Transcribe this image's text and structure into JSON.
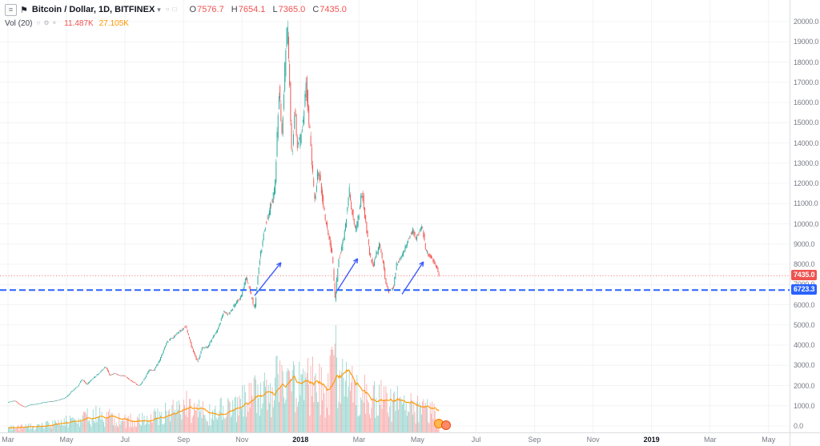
{
  "legend": {
    "symbol_title": "Bitcoin / Dollar, 1D, BITFINEX",
    "ohlc": {
      "o_label": "O",
      "o": "7576.7",
      "h_label": "H",
      "h": "7654.1",
      "l_label": "L",
      "l": "7365.0",
      "c_label": "C",
      "c": "7435.0"
    },
    "indicator": {
      "name": "Vol (20)",
      "value1": "11.487K",
      "value2": "27.105K"
    }
  },
  "colors": {
    "up": "#26a69a",
    "down": "#ef5350",
    "vol_up": "rgba(38,166,154,0.45)",
    "vol_down": "rgba(239,83,80,0.45)",
    "vol_ma": "#ff9800",
    "drawn_line": "#2962ff",
    "arrow": "#3d5afe",
    "current_price_line": "#ef5350",
    "grid_v": "rgba(42,46,57,0.06)",
    "grid_h": "rgba(42,46,57,0.05)"
  },
  "price_axis": {
    "ticks": [
      20000,
      19000,
      18000,
      17000,
      16000,
      15000,
      14000,
      13000,
      12000,
      11000,
      10000,
      9000,
      8000,
      7000,
      6000,
      5000,
      4000,
      3000,
      2000,
      1000,
      0
    ],
    "current_price_tag": "7435.0",
    "line_price_tag": "6723.3"
  },
  "time_axis": {
    "labels": [
      {
        "text": "Mar",
        "mo": 0,
        "year": false
      },
      {
        "text": "May",
        "mo": 2,
        "year": false
      },
      {
        "text": "Jul",
        "mo": 4,
        "year": false
      },
      {
        "text": "Sep",
        "mo": 6,
        "year": false
      },
      {
        "text": "Nov",
        "mo": 8,
        "year": false
      },
      {
        "text": "2018",
        "mo": 10,
        "year": true
      },
      {
        "text": "Mar",
        "mo": 12,
        "year": false
      },
      {
        "text": "May",
        "mo": 14,
        "year": false
      },
      {
        "text": "Jul",
        "mo": 16,
        "year": false
      },
      {
        "text": "Sep",
        "mo": 18,
        "year": false
      },
      {
        "text": "Nov",
        "mo": 20,
        "year": false
      },
      {
        "text": "2019",
        "mo": 22,
        "year": true
      },
      {
        "text": "Mar",
        "mo": 24,
        "year": false
      },
      {
        "text": "May",
        "mo": 26,
        "year": false
      }
    ]
  },
  "chart_data": {
    "type": "candlestick+volume",
    "title": "Bitcoin / Dollar, 1D, BITFINEX",
    "visible_data_range": "Mar 2017 - May 2018 (axis extends to May 2019)",
    "ylim": [
      0,
      20000
    ],
    "y_tick_step": 1000,
    "current_price": 7435.0,
    "support_line_price": 6723.3,
    "last_candle": {
      "o": 7576.7,
      "h": 7654.1,
      "l": 7365.0,
      "c": 7435.0
    },
    "price_keypoints": [
      [
        0.0,
        1180
      ],
      [
        0.25,
        1250
      ],
      [
        0.45,
        1020
      ],
      [
        0.6,
        940
      ],
      [
        0.8,
        1060
      ],
      [
        1.0,
        1090
      ],
      [
        1.3,
        1190
      ],
      [
        1.6,
        1230
      ],
      [
        1.8,
        1310
      ],
      [
        2.0,
        1420
      ],
      [
        2.2,
        1720
      ],
      [
        2.4,
        1960
      ],
      [
        2.55,
        2320
      ],
      [
        2.7,
        2060
      ],
      [
        2.85,
        2260
      ],
      [
        3.0,
        2460
      ],
      [
        3.2,
        2710
      ],
      [
        3.35,
        2940
      ],
      [
        3.5,
        2490
      ],
      [
        3.65,
        2610
      ],
      [
        3.8,
        2510
      ],
      [
        4.0,
        2480
      ],
      [
        4.2,
        2260
      ],
      [
        4.5,
        1980
      ],
      [
        4.65,
        2260
      ],
      [
        4.85,
        2790
      ],
      [
        5.0,
        2740
      ],
      [
        5.2,
        3260
      ],
      [
        5.45,
        4160
      ],
      [
        5.65,
        4360
      ],
      [
        5.85,
        4660
      ],
      [
        6.0,
        4810
      ],
      [
        6.1,
        4930
      ],
      [
        6.3,
        3860
      ],
      [
        6.5,
        3160
      ],
      [
        6.65,
        3860
      ],
      [
        6.85,
        3910
      ],
      [
        7.0,
        4350
      ],
      [
        7.2,
        4810
      ],
      [
        7.4,
        5710
      ],
      [
        7.55,
        5510
      ],
      [
        7.75,
        5960
      ],
      [
        8.0,
        6460
      ],
      [
        8.15,
        7410
      ],
      [
        8.3,
        6610
      ],
      [
        8.45,
        5760
      ],
      [
        8.6,
        8060
      ],
      [
        8.8,
        9860
      ],
      [
        9.0,
        10860
      ],
      [
        9.15,
        11920
      ],
      [
        9.28,
        16760
      ],
      [
        9.38,
        14310
      ],
      [
        9.48,
        17610
      ],
      [
        9.57,
        19790
      ],
      [
        9.65,
        16510
      ],
      [
        9.72,
        13210
      ],
      [
        9.82,
        15610
      ],
      [
        9.9,
        13910
      ],
      [
        10.0,
        14160
      ],
      [
        10.12,
        15160
      ],
      [
        10.2,
        17110
      ],
      [
        10.35,
        14310
      ],
      [
        10.5,
        11110
      ],
      [
        10.62,
        12860
      ],
      [
        10.75,
        11510
      ],
      [
        10.88,
        10110
      ],
      [
        11.0,
        9160
      ],
      [
        11.12,
        8160
      ],
      [
        11.2,
        6060
      ],
      [
        11.32,
        8260
      ],
      [
        11.45,
        8910
      ],
      [
        11.57,
        10160
      ],
      [
        11.68,
        11760
      ],
      [
        11.8,
        10360
      ],
      [
        11.9,
        9610
      ],
      [
        12.0,
        10360
      ],
      [
        12.12,
        11610
      ],
      [
        12.25,
        9960
      ],
      [
        12.4,
        8360
      ],
      [
        12.5,
        7910
      ],
      [
        12.62,
        8560
      ],
      [
        12.72,
        9010
      ],
      [
        12.85,
        7960
      ],
      [
        12.95,
        6860
      ],
      [
        13.05,
        6660
      ],
      [
        13.2,
        6860
      ],
      [
        13.3,
        7960
      ],
      [
        13.45,
        8260
      ],
      [
        13.6,
        8910
      ],
      [
        13.75,
        9360
      ],
      [
        13.85,
        9710
      ],
      [
        13.95,
        9260
      ],
      [
        14.05,
        9460
      ],
      [
        14.18,
        9860
      ],
      [
        14.3,
        8710
      ],
      [
        14.4,
        8460
      ],
      [
        14.55,
        8210
      ],
      [
        14.65,
        7910
      ],
      [
        14.75,
        7435
      ]
    ],
    "volume_keypoints": [
      [
        0,
        5
      ],
      [
        0.5,
        6
      ],
      [
        1,
        7
      ],
      [
        1.5,
        9
      ],
      [
        2,
        13
      ],
      [
        2.5,
        17
      ],
      [
        3,
        21
      ],
      [
        3.5,
        17
      ],
      [
        4,
        13
      ],
      [
        4.5,
        15
      ],
      [
        5,
        17
      ],
      [
        5.5,
        23
      ],
      [
        6,
        31
      ],
      [
        6.3,
        27
      ],
      [
        6.7,
        22
      ],
      [
        7,
        23
      ],
      [
        7.5,
        27
      ],
      [
        8,
        35
      ],
      [
        8.5,
        42
      ],
      [
        8.8,
        48
      ],
      [
        9,
        54
      ],
      [
        9.3,
        62
      ],
      [
        9.6,
        64
      ],
      [
        9.8,
        56
      ],
      [
        10,
        50
      ],
      [
        10.3,
        54
      ],
      [
        10.6,
        56
      ],
      [
        10.9,
        50
      ],
      [
        11.2,
        72
      ],
      [
        11.5,
        56
      ],
      [
        11.8,
        46
      ],
      [
        12,
        47
      ],
      [
        12.3,
        43
      ],
      [
        12.6,
        39
      ],
      [
        13,
        35
      ],
      [
        13.3,
        37
      ],
      [
        13.7,
        31
      ],
      [
        14,
        27
      ],
      [
        14.3,
        25
      ],
      [
        14.75,
        20
      ]
    ],
    "volume_spikes": [
      [
        6.1,
        52
      ],
      [
        8.45,
        66
      ],
      [
        9.17,
        96
      ],
      [
        9.36,
        84
      ],
      [
        9.57,
        78
      ],
      [
        10.2,
        74
      ],
      [
        10.62,
        86
      ],
      [
        11.2,
        134
      ],
      [
        11.42,
        92
      ],
      [
        12.18,
        72
      ],
      [
        12.5,
        64
      ],
      [
        13.3,
        58
      ]
    ],
    "arrows": [
      [
        8.43,
        6450,
        9.33,
        8080
      ],
      [
        11.28,
        6750,
        11.95,
        8280
      ],
      [
        13.47,
        6520,
        14.2,
        8120
      ]
    ]
  }
}
